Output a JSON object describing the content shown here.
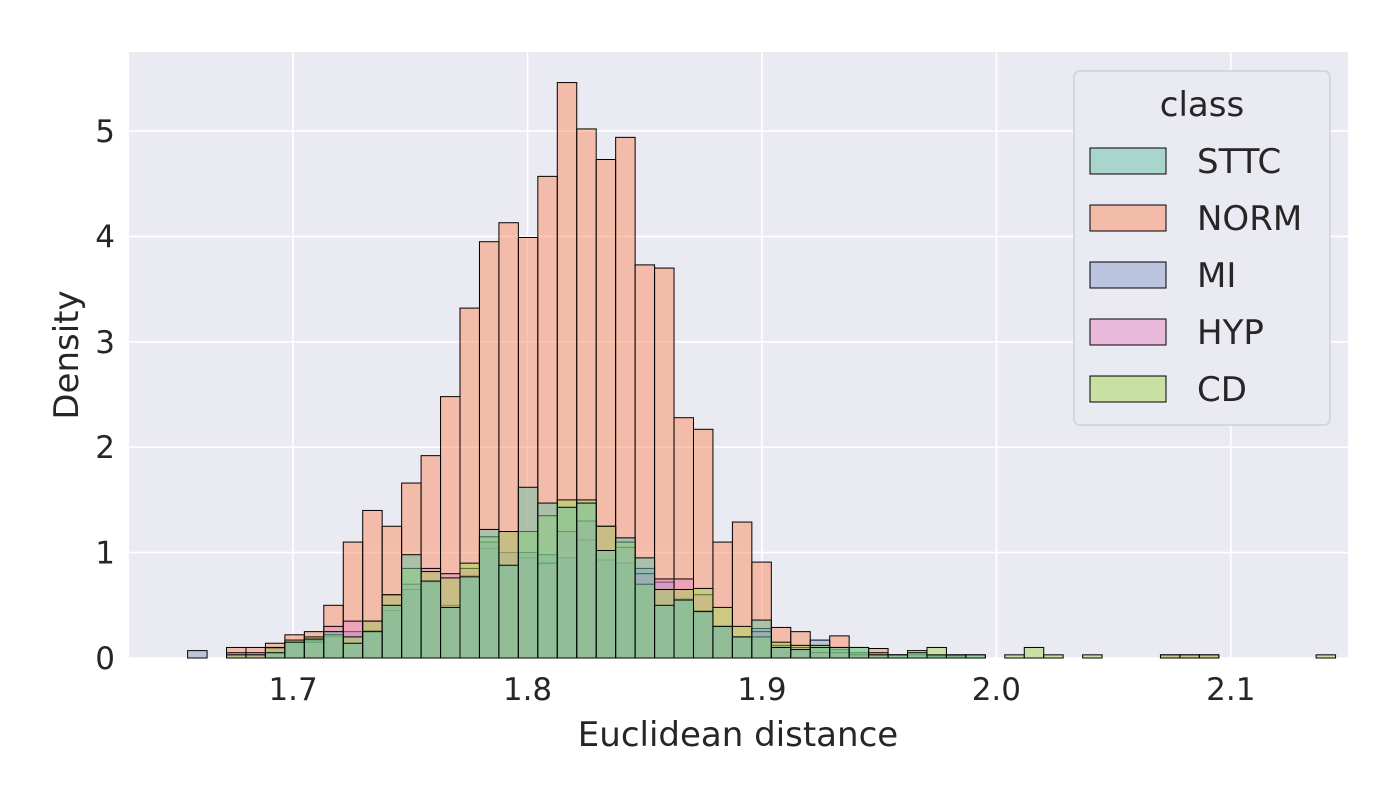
{
  "chart_data": {
    "type": "bar",
    "subtype": "overlaid-histogram",
    "xlabel": "Euclidean distance",
    "ylabel": "Density",
    "xlim": [
      1.63,
      2.15
    ],
    "ylim": [
      0,
      5.75
    ],
    "bin_width": 0.0083,
    "first_bin_start": 1.655,
    "x_ticks": [
      1.7,
      1.8,
      1.9,
      2.0,
      2.1
    ],
    "x_tick_labels": [
      "1.7",
      "1.8",
      "1.9",
      "2.0",
      "2.1"
    ],
    "y_ticks": [
      0,
      1,
      2,
      3,
      4,
      5
    ],
    "y_tick_labels": [
      "0",
      "1",
      "2",
      "3",
      "4",
      "5"
    ],
    "grid": true,
    "legend": {
      "title": "class",
      "position": "top-right",
      "entries": [
        "STTC",
        "NORM",
        "MI",
        "HYP",
        "CD"
      ]
    },
    "series": [
      {
        "name": "NORM",
        "color": "#fc8d62",
        "values": [
          0,
          0,
          0.1,
          0.1,
          0.14,
          0.22,
          0.25,
          0.5,
          1.1,
          1.4,
          1.25,
          1.66,
          1.92,
          2.48,
          3.32,
          3.95,
          4.13,
          3.99,
          4.57,
          5.46,
          5.02,
          4.73,
          4.94,
          3.73,
          3.7,
          2.28,
          2.17,
          1.1,
          1.29,
          0.91,
          0.29,
          0.25,
          0.1,
          0.21,
          0.05,
          0.09,
          0,
          0,
          0,
          0,
          0,
          0,
          0,
          0,
          0,
          0,
          0,
          0,
          0,
          0,
          0.03,
          0.03,
          0.03,
          0,
          0,
          0,
          0,
          0,
          0
        ]
      },
      {
        "name": "MI",
        "color": "#8da0cb",
        "values": [
          0.07,
          0,
          0.03,
          0.03,
          0.09,
          0.15,
          0.17,
          0.2,
          0.25,
          0.26,
          0.45,
          0.65,
          0.72,
          0.5,
          0.78,
          1.04,
          1.0,
          0.95,
          0.98,
          0.95,
          1.12,
          0.93,
          0.9,
          0.85,
          0.72,
          0.56,
          0.45,
          0.3,
          0.2,
          0.28,
          0.12,
          0.1,
          0.17,
          0.08,
          0.05,
          0.03,
          0.03,
          0.03,
          0.02,
          0.02,
          0,
          0,
          0,
          0,
          0,
          0,
          0,
          0,
          0,
          0,
          0,
          0,
          0,
          0,
          0,
          0,
          0,
          0,
          0
        ]
      },
      {
        "name": "HYP",
        "color": "#e78ac3",
        "values": [
          0,
          0,
          0.05,
          0.05,
          0.1,
          0.15,
          0.15,
          0.3,
          0.35,
          0.35,
          0.6,
          0.7,
          0.85,
          0.8,
          0.85,
          1.1,
          1.2,
          1.0,
          0.9,
          1.2,
          1.3,
          1.25,
          1.05,
          0.8,
          0.75,
          0.75,
          0.6,
          0.3,
          0.2,
          0.25,
          0.1,
          0.1,
          0.05,
          0.05,
          0.03,
          0.03,
          0,
          0,
          0,
          0,
          0,
          0,
          0,
          0,
          0,
          0,
          0,
          0,
          0,
          0,
          0,
          0,
          0,
          0,
          0,
          0,
          0,
          0,
          0
        ]
      },
      {
        "name": "CD",
        "color": "#a6d854",
        "values": [
          0,
          0,
          0.03,
          0.03,
          0.1,
          0.17,
          0.2,
          0.22,
          0.2,
          0.35,
          0.6,
          0.85,
          0.82,
          0.76,
          0.9,
          1.15,
          1.2,
          1.2,
          1.35,
          1.5,
          1.5,
          1.25,
          1.1,
          0.7,
          0.65,
          0.65,
          0.66,
          0.48,
          0.3,
          0.2,
          0.15,
          0.12,
          0.12,
          0.1,
          0.1,
          0.05,
          0.03,
          0.07,
          0.1,
          0.03,
          0.03,
          0,
          0.03,
          0.1,
          0.03,
          0,
          0.03,
          0,
          0,
          0,
          0.03,
          0.03,
          0.03,
          0,
          0,
          0,
          0,
          0,
          0.03
        ]
      },
      {
        "name": "STTC",
        "color": "#66c2a5",
        "values": [
          0,
          0,
          0,
          0,
          0.05,
          0.15,
          0.18,
          0.25,
          0.14,
          0.25,
          0.5,
          0.98,
          0.73,
          0.48,
          0.77,
          1.22,
          0.88,
          1.62,
          1.47,
          1.43,
          1.47,
          1.02,
          1.14,
          0.95,
          0.5,
          0.55,
          0.44,
          0.3,
          0.2,
          0.36,
          0.1,
          0.08,
          0.1,
          0.1,
          0.1,
          0.03,
          0.03,
          0.05,
          0.03,
          0.03,
          0.03,
          0,
          0,
          0,
          0,
          0,
          0,
          0,
          0,
          0,
          0,
          0,
          0,
          0,
          0,
          0,
          0,
          0,
          0
        ]
      }
    ]
  }
}
